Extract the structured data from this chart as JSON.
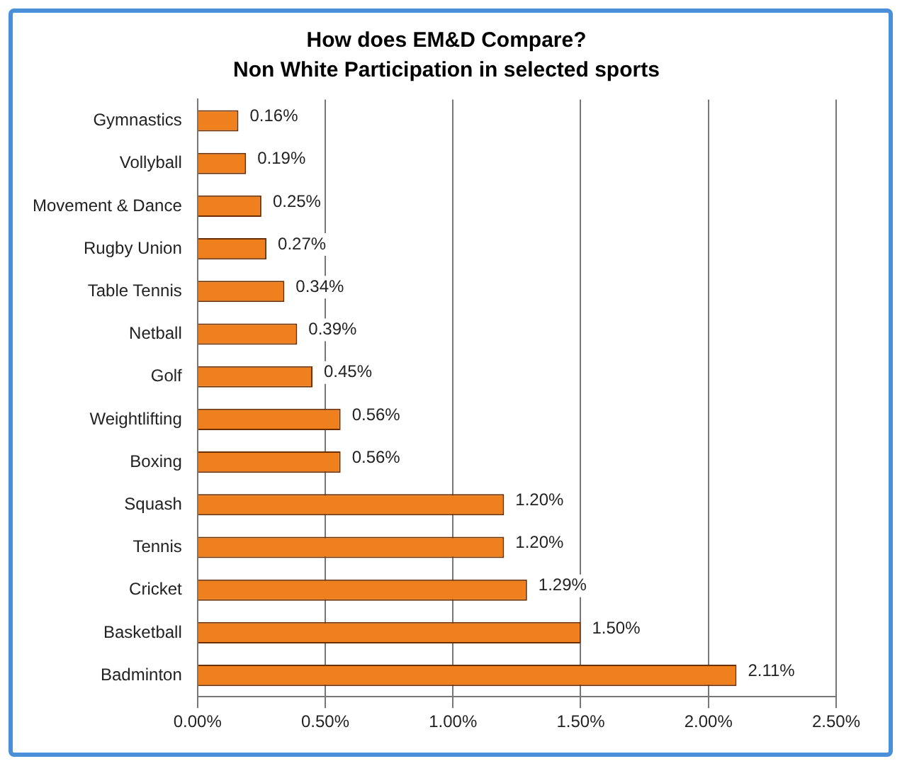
{
  "chart_data": {
    "type": "bar",
    "orientation": "horizontal",
    "title": "How does EM&D Compare?",
    "subtitle": "Non White Participation in selected sports",
    "categories": [
      "Gymnastics",
      "Vollyball",
      "Movement & Dance",
      "Rugby Union",
      "Table Tennis",
      "Netball",
      "Golf",
      "Weightlifting",
      "Boxing",
      "Squash",
      "Tennis",
      "Cricket",
      "Basketball",
      "Badminton"
    ],
    "values": [
      0.16,
      0.19,
      0.25,
      0.27,
      0.34,
      0.39,
      0.45,
      0.56,
      0.56,
      1.2,
      1.2,
      1.29,
      1.5,
      2.11
    ],
    "value_labels": [
      "0.16%",
      "0.19%",
      "0.25%",
      "0.27%",
      "0.34%",
      "0.39%",
      "0.45%",
      "0.56%",
      "0.56%",
      "1.20%",
      "1.20%",
      "1.29%",
      "1.50%",
      "2.11%"
    ],
    "color": "#f0801e",
    "xlim": [
      0,
      2.5
    ],
    "xticks": [
      {
        "value": 0,
        "label": "0.00%"
      },
      {
        "value": 0.5,
        "label": "0.50%"
      },
      {
        "value": 1,
        "label": "1.00%"
      },
      {
        "value": 1.5,
        "label": "1.50%"
      },
      {
        "value": 2,
        "label": "2.00%"
      },
      {
        "value": 2.5,
        "label": "2.50%"
      }
    ],
    "grid": "x",
    "legend": false
  }
}
